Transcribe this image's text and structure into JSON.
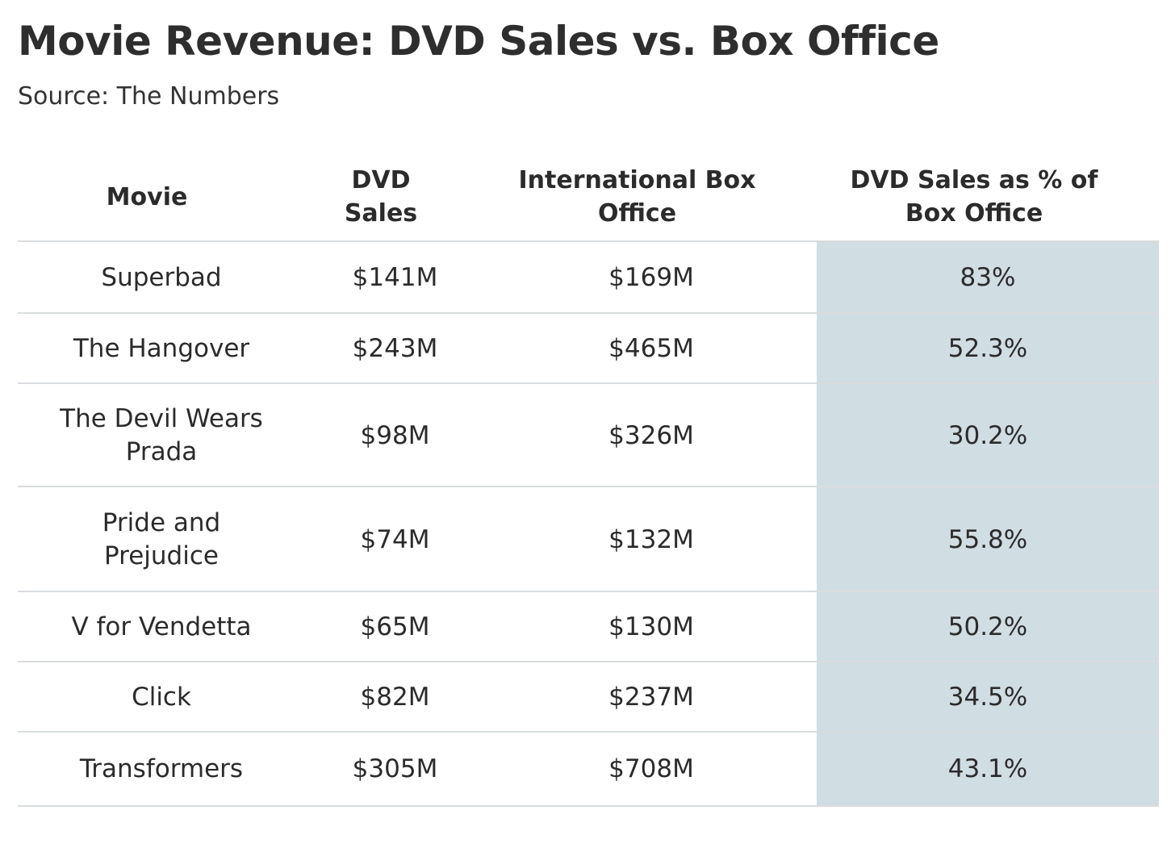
{
  "chart_data": {
    "type": "table",
    "title": "Movie Revenue: DVD Sales vs. Box Office",
    "subtitle": "Source: The Numbers",
    "columns": [
      "Movie",
      "DVD Sales",
      "International Box Office",
      "DVD Sales as % of Box Office"
    ],
    "rows": [
      {
        "movie": "Superbad",
        "dvd_sales": "$141M",
        "box_office": "$169M",
        "pct": "83%"
      },
      {
        "movie": "The Hangover",
        "dvd_sales": "$243M",
        "box_office": "$465M",
        "pct": "52.3%"
      },
      {
        "movie": "The Devil Wears Prada",
        "dvd_sales": "$98M",
        "box_office": "$326M",
        "pct": "30.2%"
      },
      {
        "movie": "Pride and Prejudice",
        "dvd_sales": "$74M",
        "box_office": "$132M",
        "pct": "55.8%"
      },
      {
        "movie": "V for Vendetta",
        "dvd_sales": "$65M",
        "box_office": "$130M",
        "pct": "50.2%"
      },
      {
        "movie": "Click",
        "dvd_sales": "$82M",
        "box_office": "$237M",
        "pct": "34.5%"
      },
      {
        "movie": "Transformers",
        "dvd_sales": "$305M",
        "box_office": "$708M",
        "pct": "43.1%"
      }
    ]
  },
  "colors": {
    "highlight_column": "#d0dde3",
    "row_divider": "#d9dcde",
    "text": "#2b2b2b"
  }
}
